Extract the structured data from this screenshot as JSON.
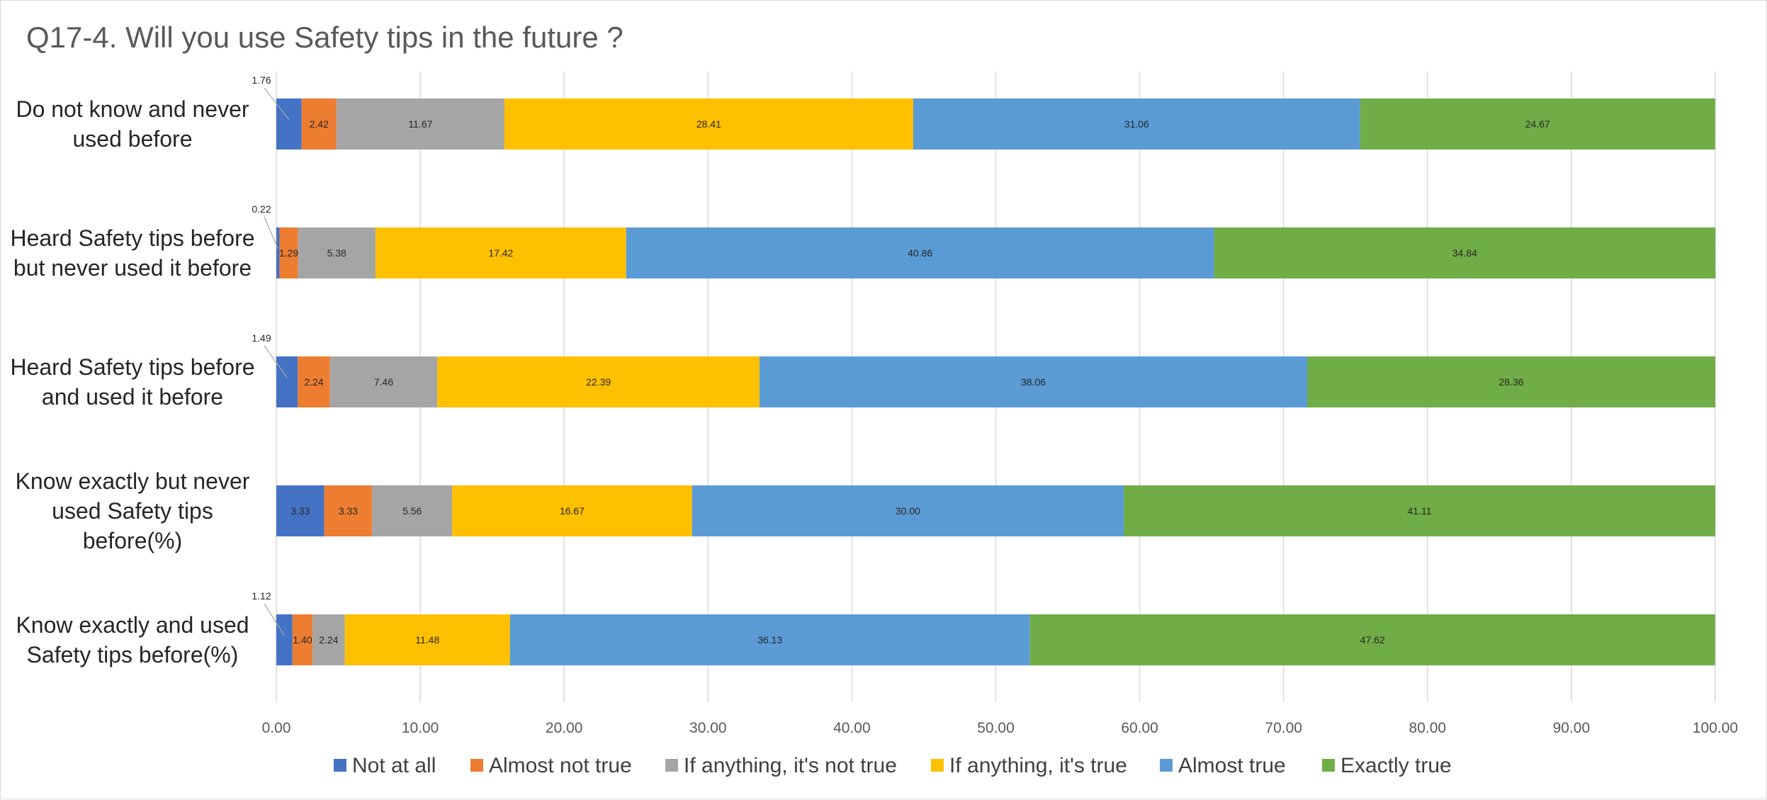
{
  "chart_data": {
    "type": "bar",
    "orientation": "horizontal",
    "stacked": true,
    "title": "Q17-4. Will you use Safety tips in the future ?",
    "xlabel": "",
    "ylabel": "",
    "xlim": [
      0,
      100
    ],
    "x_ticks": [
      "0.00",
      "10.00",
      "20.00",
      "30.00",
      "40.00",
      "50.00",
      "60.00",
      "70.00",
      "80.00",
      "90.00",
      "100.00"
    ],
    "grid": true,
    "legend_position": "bottom",
    "categories": [
      [
        "Do not know and never",
        "used before"
      ],
      [
        "Heard Safety tips before",
        "but never used it before"
      ],
      [
        "Heard Safety tips before",
        "and used it before"
      ],
      [
        "Know exactly but never",
        "used Safety tips",
        "before(%)"
      ],
      [
        "Know exactly and used",
        "Safety tips before(%)"
      ]
    ],
    "series": [
      {
        "name": "Not at all",
        "color": "#4472C4",
        "values": [
          1.76,
          0.22,
          1.49,
          3.33,
          1.12
        ],
        "labels": [
          "1.76",
          "0.22",
          "1.49",
          "3.33",
          "1.12"
        ]
      },
      {
        "name": "Almost not true",
        "color": "#ED7D31",
        "values": [
          2.42,
          1.29,
          2.24,
          3.33,
          1.4
        ],
        "labels": [
          "2.42",
          "1.29",
          "2.24",
          "3.33",
          "1.40"
        ]
      },
      {
        "name": "If anything, it's not true",
        "color": "#A5A5A5",
        "values": [
          11.67,
          5.38,
          7.46,
          5.56,
          2.24
        ],
        "labels": [
          "11.67",
          "5.38",
          "7.46",
          "5.56",
          "2.24"
        ]
      },
      {
        "name": "If anything, it's true",
        "color": "#FFC000",
        "values": [
          28.41,
          17.42,
          22.39,
          16.67,
          11.48
        ],
        "labels": [
          "28.41",
          "17.42",
          "22.39",
          "16.67",
          "11.48"
        ]
      },
      {
        "name": "Almost true",
        "color": "#5B9BD5",
        "values": [
          31.06,
          40.86,
          38.06,
          30.0,
          36.13
        ],
        "labels": [
          "31.06",
          "40.86",
          "38.06",
          "30.00",
          "36.13"
        ]
      },
      {
        "name": "Exactly true",
        "color": "#70AD47",
        "values": [
          24.67,
          34.84,
          28.36,
          41.11,
          47.62
        ],
        "labels": [
          "24.67",
          "34.84",
          "28.36",
          "41.11",
          "47.62"
        ]
      }
    ],
    "callouts": [
      {
        "series": 0,
        "category": 0
      },
      {
        "series": 0,
        "category": 1
      },
      {
        "series": 0,
        "category": 2
      },
      {
        "series": 0,
        "category": 4
      }
    ]
  }
}
